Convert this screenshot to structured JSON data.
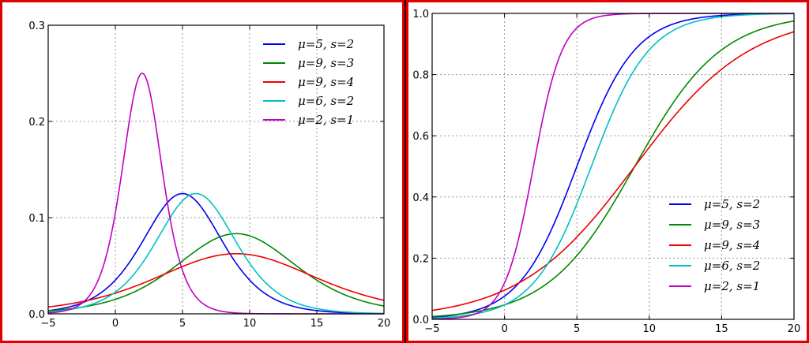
{
  "chart_data": [
    {
      "type": "line",
      "title": "",
      "xlabel": "",
      "ylabel": "",
      "function": "pdf",
      "xlim": [
        -5,
        20
      ],
      "ylim": [
        0,
        0.3
      ],
      "xticks": [
        -5,
        0,
        5,
        10,
        15,
        20
      ],
      "yticks": [
        0.0,
        0.1,
        0.2,
        0.3
      ],
      "xtick_labels": [
        "−5",
        "0",
        "5",
        "10",
        "15",
        "20"
      ],
      "ytick_labels": [
        "0.0",
        "0.1",
        "0.2",
        "0.3"
      ],
      "grid": true,
      "legend_position": "top-right",
      "series": [
        {
          "name": "μ=5, s=2",
          "mu": 5,
          "s": 2,
          "color": "#0000ee"
        },
        {
          "name": "μ=9, s=3",
          "mu": 9,
          "s": 3,
          "color": "#008800"
        },
        {
          "name": "μ=9, s=4",
          "mu": 9,
          "s": 4,
          "color": "#ee0000"
        },
        {
          "name": "μ=6, s=2",
          "mu": 6,
          "s": 2,
          "color": "#00c0c0"
        },
        {
          "name": "μ=2, s=1",
          "mu": 2,
          "s": 1,
          "color": "#c000c0"
        }
      ]
    },
    {
      "type": "line",
      "title": "",
      "xlabel": "",
      "ylabel": "",
      "function": "cdf",
      "xlim": [
        -5,
        20
      ],
      "ylim": [
        0,
        1.0
      ],
      "xticks": [
        -5,
        0,
        5,
        10,
        15,
        20
      ],
      "yticks": [
        0.0,
        0.2,
        0.4,
        0.6,
        0.8,
        1.0
      ],
      "xtick_labels": [
        "−5",
        "0",
        "5",
        "10",
        "15",
        "20"
      ],
      "ytick_labels": [
        "0.0",
        "0.2",
        "0.4",
        "0.6",
        "0.8",
        "1.0"
      ],
      "grid": true,
      "legend_position": "bottom-right",
      "series": [
        {
          "name": "μ=5, s=2",
          "mu": 5,
          "s": 2,
          "color": "#0000ee"
        },
        {
          "name": "μ=9, s=3",
          "mu": 9,
          "s": 3,
          "color": "#008800"
        },
        {
          "name": "μ=9, s=4",
          "mu": 9,
          "s": 4,
          "color": "#ee0000"
        },
        {
          "name": "μ=6, s=2",
          "mu": 6,
          "s": 2,
          "color": "#00c0c0"
        },
        {
          "name": "μ=2, s=1",
          "mu": 2,
          "s": 1,
          "color": "#c000c0"
        }
      ]
    }
  ],
  "frame_color": "#e00000"
}
